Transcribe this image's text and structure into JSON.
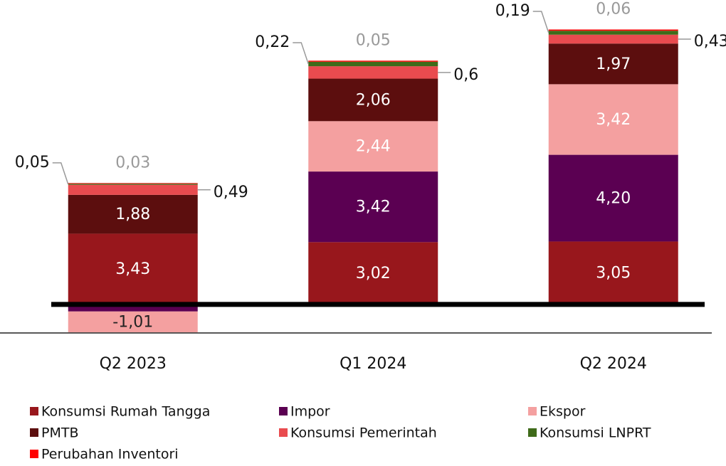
{
  "chart_data": {
    "type": "stacked_bar",
    "categories": [
      "Q2 2023",
      "Q1 2024",
      "Q2 2024"
    ],
    "series": [
      {
        "name": "Konsumsi Rumah Tangga",
        "color": "#98171c",
        "values": [
          3.43,
          3.02,
          3.05
        ],
        "value_labels": [
          "3,43",
          "3,02",
          "3,05"
        ]
      },
      {
        "name": "Impor",
        "color": "#5b0052",
        "values": [
          -0.34,
          3.42,
          4.2
        ],
        "value_labels": [
          null,
          "3,42",
          "4,20"
        ]
      },
      {
        "name": "Ekspor",
        "color": "#f4a0a0",
        "values": [
          -1.01,
          2.44,
          3.42
        ],
        "value_labels": [
          "-1,01",
          "2,44",
          "3,42"
        ]
      },
      {
        "name": "PMTB",
        "color": "#5c0e0e",
        "values": [
          1.88,
          2.06,
          1.97
        ],
        "value_labels": [
          "1,88",
          "2,06",
          "1,97"
        ]
      },
      {
        "name": "Konsumsi Pemerintah",
        "color": "#e94b4f",
        "values": [
          0.49,
          0.6,
          0.43
        ],
        "value_labels": [
          "0,49",
          "0,6",
          "0,43"
        ]
      },
      {
        "name": "Konsumsi LNPRT",
        "color": "#3f6b1a",
        "values": [
          0.05,
          0.22,
          0.19
        ],
        "value_labels": [
          "0,05",
          "0,22",
          "0,19"
        ]
      },
      {
        "name": "Perubahan Inventori",
        "color": "#ff0000",
        "values": [
          0.03,
          0.05,
          0.06
        ],
        "value_labels": [
          "0,03",
          "0,05",
          "0,06"
        ]
      }
    ],
    "ylim": [
      -1.45,
      14.75
    ]
  }
}
